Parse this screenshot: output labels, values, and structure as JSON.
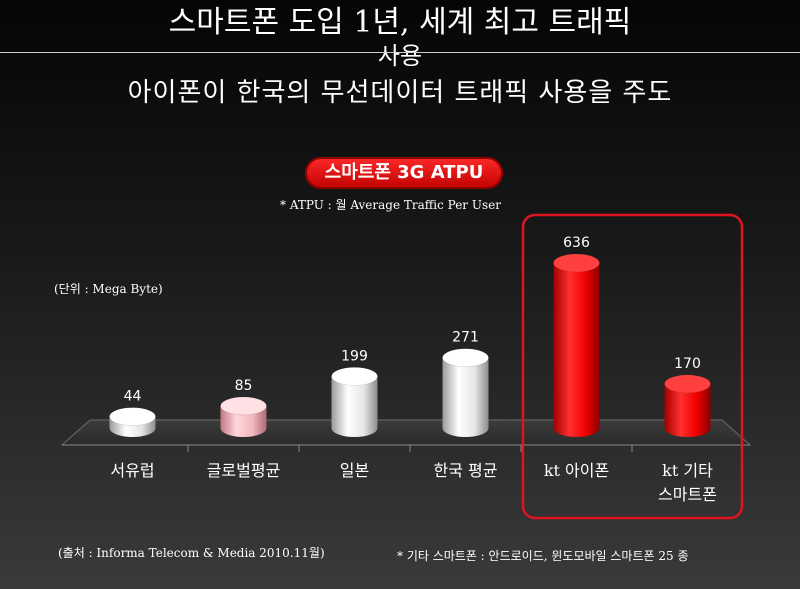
{
  "title": {
    "line1": "스마트폰 도입 1년, 세계 최고 트래픽",
    "line1_wrap": "사용",
    "line2": "아이폰이 한국의 무선데이터 트래픽 사용을 주도"
  },
  "badge": "스마트폰 3G ATPU",
  "badge_note": "* ATPU : 월 Average Traffic Per User",
  "unit_label": "(단위 : Mega Byte)",
  "source": "(출처 : Informa Telecom & Media 2010.11월)",
  "footnote": "* 기타 스마트폰 : 안드로이드, 윈도모바일 스마트폰 25 종",
  "colors": {
    "white_bar": "#e8e8e8",
    "pink_bar": "#f2b8bf",
    "red_bar": "#ff1a1a",
    "highlight_box": "#e0141e"
  },
  "chart_data": {
    "type": "bar",
    "title": "스마트폰 3G ATPU",
    "ylabel": "(단위 : Mega Byte)",
    "categories": [
      "서유럽",
      "글로벌평균",
      "일본",
      "한국 평균",
      "kt 아이폰",
      "kt 기타 스마트폰"
    ],
    "values": [
      44,
      85,
      199,
      271,
      636,
      170
    ],
    "bar_colors": [
      "white",
      "pink",
      "white",
      "white",
      "red",
      "red"
    ],
    "highlight": [
      "kt 아이폰",
      "kt 기타 스마트폰"
    ],
    "ylim": [
      0,
      700
    ]
  }
}
